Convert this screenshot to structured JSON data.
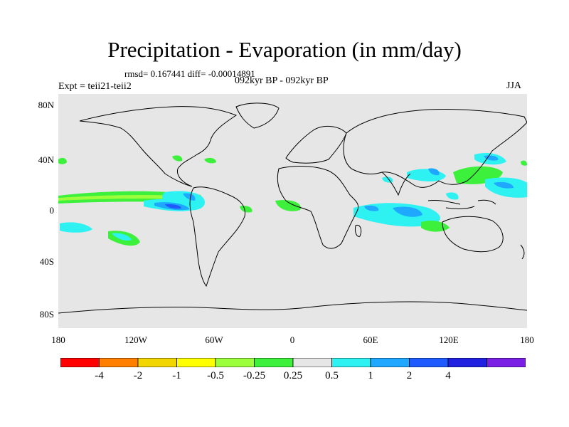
{
  "title": "Precipitation - Evaporation (in mm/day)",
  "stats": "rmsd= 0.167441 diff= -0.00014891",
  "subtitle": "092kyr BP - 092kyr BP",
  "experiment": "Expt = teii21-teii2",
  "season": "JJA",
  "lat_ticks": [
    "80N",
    "40N",
    "0",
    "40S",
    "80S"
  ],
  "lon_ticks": [
    "180",
    "120W",
    "60W",
    "0",
    "60E",
    "120E",
    "180"
  ],
  "colorbar": {
    "colors": [
      "#ff0000",
      "#ff8000",
      "#f2d600",
      "#ffff00",
      "#9cff3c",
      "#3cf03c",
      "#e6e6e6",
      "#2ef2f2",
      "#1ea8ff",
      "#1e5aff",
      "#2020e0",
      "#7a1ee6"
    ],
    "labels": [
      "-4",
      "-2",
      "-1",
      "-0.5",
      "-0.25",
      "0.25",
      "0.5",
      "1",
      "2",
      "4"
    ]
  },
  "colors": {
    "land_ocean": "#e6e6e6",
    "coast": "#000000"
  }
}
